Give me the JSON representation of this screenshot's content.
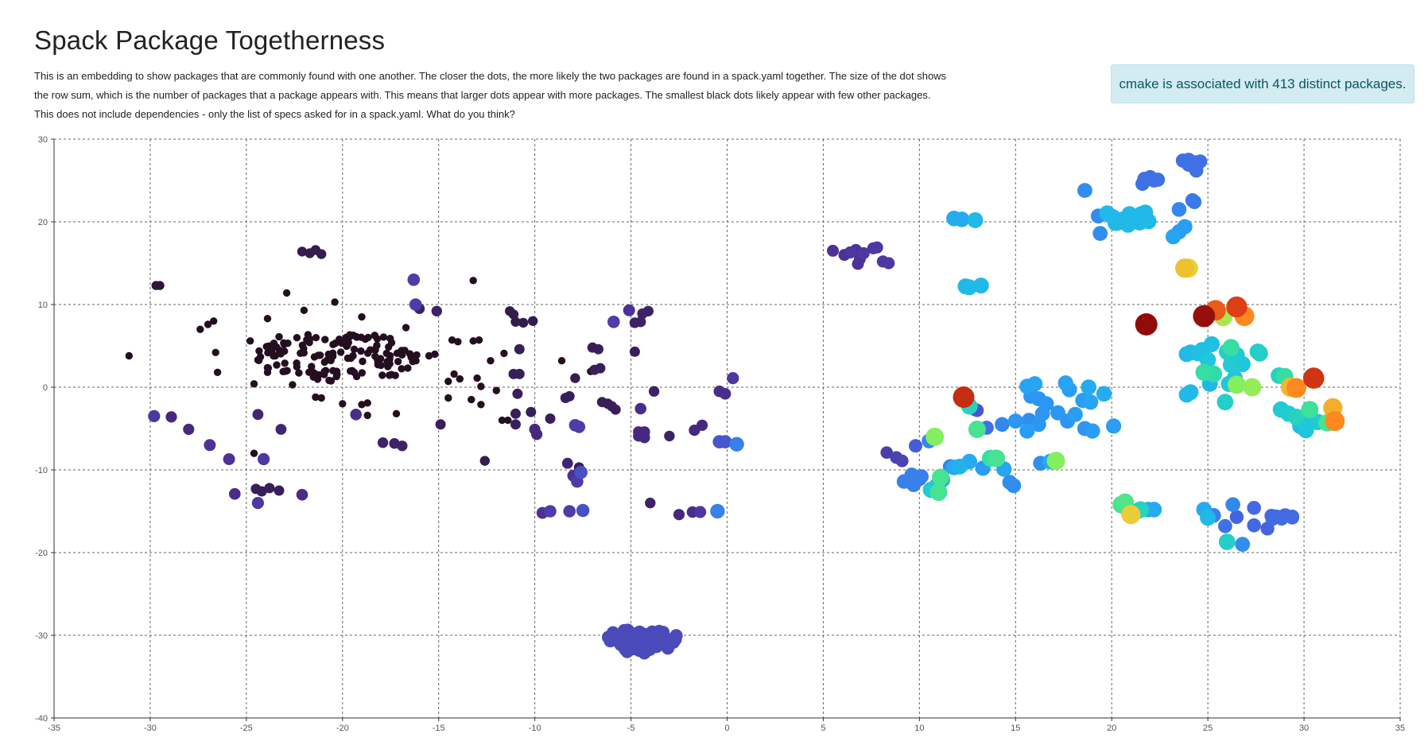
{
  "page": {
    "title": "Spack Package Togetherness",
    "description": "This is an embedding to show packages that are commonly found with one another. The closer the dots, the more likely the two packages are found in a spack.yaml together. The size of the dot shows the row sum, which is the number of packages that a package appears with. This means that larger dots appear with more packages. The smallest black dots likely appear with few other packages. This does not include dependencies - only the list of specs asked for in a spack.yaml. What do you think?",
    "info_message": "cmake is associated with 413 distinct packages."
  },
  "colors": {
    "grid": "#666666",
    "axis": "#333333",
    "info_bg": "#d2ecf1",
    "info_text": "#0c5460"
  },
  "chart_data": {
    "type": "scatter",
    "title": "",
    "xlabel": "",
    "ylabel": "",
    "xlim": [
      -35,
      35
    ],
    "ylim": [
      -40,
      30
    ],
    "grid": true,
    "x_ticks": [
      -35,
      -30,
      -25,
      -20,
      -15,
      -10,
      -5,
      0,
      5,
      10,
      15,
      20,
      25,
      30,
      35
    ],
    "y_ticks": [
      30,
      20,
      10,
      0,
      -10,
      -20,
      -30,
      -40
    ],
    "value_range": [
      0,
      413
    ],
    "color_scale": "jet-like (black/purple = few associations, cyan/green = medium, yellow/orange/red = many)",
    "point_format": "[x, y, row_sum]",
    "clusters": [
      {
        "name": "dense-black-cluster",
        "kind": "ellipse",
        "center": [
          -20.2,
          3.6
        ],
        "radius": [
          4.3,
          3.0
        ],
        "count": 140,
        "value": 2
      },
      {
        "name": "bottom-blue-cluster",
        "kind": "ellipse",
        "center": [
          -4.4,
          -30.6
        ],
        "radius": [
          1.9,
          1.6
        ],
        "count": 55,
        "value": 70
      },
      {
        "name": "top-cyan-cluster",
        "kind": "ellipse",
        "center": [
          20.8,
          20.5
        ],
        "radius": [
          1.4,
          0.9
        ],
        "count": 22,
        "value": 150
      },
      {
        "name": "right-lower-blue-cluster",
        "kind": "ellipse",
        "center": [
          28.6,
          -15.8
        ],
        "radius": [
          0.9,
          0.4
        ],
        "count": 10,
        "value": 95
      }
    ],
    "points": [
      [
        -31.1,
        3.8,
        2
      ],
      [
        -29.7,
        12.3,
        12
      ],
      [
        -29.5,
        12.3,
        12
      ],
      [
        -27.4,
        7.0,
        2
      ],
      [
        -27.0,
        7.6,
        2
      ],
      [
        -26.7,
        8.0,
        2
      ],
      [
        -26.6,
        4.2,
        2
      ],
      [
        -26.5,
        1.8,
        2
      ],
      [
        -24.8,
        5.6,
        2
      ],
      [
        -24.4,
        3.3,
        2
      ],
      [
        -24.6,
        0.4,
        2
      ],
      [
        -23.9,
        8.3,
        2
      ],
      [
        -23.9,
        1.8,
        2
      ],
      [
        -23.3,
        6.1,
        2
      ],
      [
        -23.0,
        2.9,
        2
      ],
      [
        -22.9,
        11.4,
        2
      ],
      [
        -22.6,
        0.3,
        2
      ],
      [
        -22.0,
        9.3,
        2
      ],
      [
        -21.4,
        -1.2,
        2
      ],
      [
        -21.1,
        -1.3,
        2
      ],
      [
        -20.4,
        10.3,
        2
      ],
      [
        -19.5,
        2.0,
        2
      ],
      [
        -19.0,
        8.5,
        2
      ],
      [
        -19.0,
        -2.1,
        2
      ],
      [
        -18.7,
        -1.9,
        2
      ],
      [
        -18.7,
        -3.4,
        2
      ],
      [
        -20.0,
        -2.0,
        2
      ],
      [
        -17.2,
        -3.2,
        2
      ],
      [
        -16.7,
        7.2,
        2
      ],
      [
        -22.1,
        16.4,
        20
      ],
      [
        -21.7,
        16.2,
        20
      ],
      [
        -21.4,
        16.6,
        20
      ],
      [
        -21.1,
        16.1,
        20
      ],
      [
        -16.2,
        10.0,
        60
      ],
      [
        -16.0,
        9.5,
        30
      ],
      [
        -15.1,
        9.2,
        30
      ],
      [
        -16.3,
        13.0,
        60
      ],
      [
        -15.5,
        3.8,
        2
      ],
      [
        -15.2,
        4.0,
        2
      ],
      [
        -14.9,
        -4.5,
        25
      ],
      [
        -14.3,
        5.7,
        2
      ],
      [
        -14.0,
        5.5,
        2
      ],
      [
        -14.2,
        1.6,
        2
      ],
      [
        -14.5,
        0.7,
        2
      ],
      [
        -13.9,
        1.0,
        2
      ],
      [
        -14.5,
        -1.3,
        2
      ],
      [
        -13.2,
        12.9,
        2
      ],
      [
        -13.2,
        5.6,
        2
      ],
      [
        -12.9,
        5.7,
        2
      ],
      [
        -13.0,
        1.1,
        2
      ],
      [
        -12.8,
        0.1,
        2
      ],
      [
        -13.3,
        -1.5,
        2
      ],
      [
        -12.8,
        -2.1,
        2
      ],
      [
        -12.6,
        -8.9,
        20
      ],
      [
        -12.3,
        3.2,
        2
      ],
      [
        -12.0,
        -0.4,
        2
      ],
      [
        -11.7,
        -4.0,
        2
      ],
      [
        -11.4,
        -4.0,
        2
      ],
      [
        -11.6,
        4.1,
        2
      ],
      [
        -11.3,
        9.2,
        20
      ],
      [
        -11.1,
        8.8,
        20
      ],
      [
        -11.0,
        7.9,
        20
      ],
      [
        -10.6,
        7.8,
        20
      ],
      [
        -10.8,
        4.6,
        25
      ],
      [
        -11.1,
        1.6,
        25
      ],
      [
        -10.8,
        1.6,
        25
      ],
      [
        -10.9,
        -0.8,
        25
      ],
      [
        -11.0,
        -3.2,
        25
      ],
      [
        -11.0,
        -4.5,
        25
      ],
      [
        -10.1,
        8.0,
        20
      ],
      [
        -10.2,
        -3.0,
        25
      ],
      [
        -10.0,
        -5.1,
        40
      ],
      [
        -9.9,
        -5.7,
        40
      ],
      [
        -9.2,
        -3.8,
        25
      ],
      [
        -8.6,
        3.2,
        2
      ],
      [
        -8.4,
        -1.3,
        25
      ],
      [
        -8.2,
        -1.1,
        25
      ],
      [
        -7.9,
        1.1,
        20
      ],
      [
        -8.3,
        -9.2,
        35
      ],
      [
        -8.0,
        -10.7,
        50
      ],
      [
        -7.8,
        -11.4,
        60
      ],
      [
        -7.6,
        -10.3,
        75
      ],
      [
        -7.1,
        1.9,
        2
      ],
      [
        -7.0,
        4.8,
        25
      ],
      [
        -6.7,
        4.6,
        25
      ],
      [
        -6.9,
        2.1,
        25
      ],
      [
        -6.6,
        2.3,
        25
      ],
      [
        -6.5,
        -1.8,
        25
      ],
      [
        -6.2,
        -2.0,
        25
      ],
      [
        -6.0,
        -2.3,
        25
      ],
      [
        -5.8,
        -2.7,
        25
      ],
      [
        -7.7,
        -9.7,
        25
      ],
      [
        -7.9,
        -4.6,
        60
      ],
      [
        -7.7,
        -4.8,
        60
      ],
      [
        -9.6,
        -15.2,
        50
      ],
      [
        -9.2,
        -15.0,
        60
      ],
      [
        -8.2,
        -15.0,
        60
      ],
      [
        -7.5,
        -14.9,
        75
      ],
      [
        -5.9,
        7.9,
        60
      ],
      [
        -5.1,
        9.3,
        50
      ],
      [
        -4.8,
        7.8,
        30
      ],
      [
        -4.5,
        7.9,
        30
      ],
      [
        -4.4,
        8.9,
        30
      ],
      [
        -4.1,
        9.2,
        30
      ],
      [
        -4.8,
        4.3,
        25
      ],
      [
        -4.6,
        -5.4,
        40
      ],
      [
        -4.6,
        -5.9,
        40
      ],
      [
        -4.3,
        -5.4,
        40
      ],
      [
        -4.3,
        -6.1,
        40
      ],
      [
        -4.5,
        -2.6,
        45
      ],
      [
        -4.0,
        -14.0,
        30
      ],
      [
        -3.8,
        -0.5,
        30
      ],
      [
        -3.0,
        -5.9,
        30
      ],
      [
        -2.5,
        -15.4,
        40
      ],
      [
        -1.8,
        -15.1,
        45
      ],
      [
        -1.4,
        -15.1,
        55
      ],
      [
        -1.7,
        -5.2,
        40
      ],
      [
        -1.3,
        -4.6,
        40
      ],
      [
        -0.4,
        -0.5,
        45
      ],
      [
        -0.1,
        -0.8,
        45
      ],
      [
        0.3,
        1.1,
        55
      ],
      [
        -0.1,
        -6.6,
        80
      ],
      [
        -0.5,
        -15.0,
        110
      ],
      [
        -0.4,
        -6.6,
        80
      ],
      [
        0.5,
        -6.9,
        110
      ],
      [
        -29.8,
        -3.5,
        55
      ],
      [
        -28.9,
        -3.6,
        40
      ],
      [
        -28.0,
        -5.1,
        40
      ],
      [
        -26.9,
        -7.0,
        50
      ],
      [
        -25.9,
        -8.7,
        50
      ],
      [
        -24.6,
        -8.0,
        2
      ],
      [
        -24.4,
        -3.3,
        35
      ],
      [
        -24.1,
        -8.7,
        55
      ],
      [
        -24.4,
        -14.0,
        55
      ],
      [
        -25.6,
        -12.9,
        45
      ],
      [
        -24.2,
        -12.6,
        25
      ],
      [
        -23.8,
        -12.2,
        25
      ],
      [
        -23.3,
        -12.5,
        25
      ],
      [
        -24.5,
        -12.3,
        25
      ],
      [
        -22.1,
        -13.0,
        45
      ],
      [
        -23.2,
        -5.1,
        35
      ],
      [
        -19.3,
        -3.3,
        45
      ],
      [
        -17.9,
        -6.7,
        30
      ],
      [
        -17.3,
        -6.8,
        30
      ],
      [
        -16.9,
        -7.1,
        30
      ],
      [
        5.5,
        16.5,
        50
      ],
      [
        6.1,
        16.0,
        50
      ],
      [
        6.4,
        16.3,
        55
      ],
      [
        6.7,
        16.6,
        50
      ],
      [
        6.9,
        15.5,
        50
      ],
      [
        7.1,
        16.2,
        55
      ],
      [
        6.8,
        14.9,
        50
      ],
      [
        7.6,
        16.8,
        55
      ],
      [
        7.8,
        16.9,
        55
      ],
      [
        8.1,
        15.2,
        55
      ],
      [
        8.4,
        15.0,
        55
      ],
      [
        8.3,
        -7.9,
        60
      ],
      [
        8.8,
        -8.5,
        65
      ],
      [
        9.1,
        -8.9,
        65
      ],
      [
        9.2,
        -11.4,
        110
      ],
      [
        9.6,
        -10.6,
        110
      ],
      [
        9.7,
        -11.8,
        110
      ],
      [
        10.0,
        -11.1,
        100
      ],
      [
        10.1,
        -10.8,
        110
      ],
      [
        9.8,
        -7.1,
        85
      ],
      [
        10.5,
        -6.5,
        115
      ],
      [
        10.9,
        -11.9,
        130
      ],
      [
        11.2,
        -11.2,
        135
      ],
      [
        10.6,
        -12.4,
        165
      ],
      [
        10.8,
        -6.0,
        230
      ],
      [
        11.1,
        -10.9,
        200
      ],
      [
        11.0,
        -12.7,
        200
      ],
      [
        11.8,
        -9.7,
        140
      ],
      [
        11.6,
        -9.6,
        115
      ],
      [
        12.1,
        -9.6,
        145
      ],
      [
        12.6,
        -9.0,
        140
      ],
      [
        13.0,
        -5.1,
        200
      ],
      [
        13.5,
        -4.9,
        100
      ],
      [
        13.3,
        -9.8,
        130
      ],
      [
        13.7,
        -8.6,
        190
      ],
      [
        14.0,
        -8.6,
        200
      ],
      [
        14.3,
        -4.5,
        115
      ],
      [
        14.4,
        -9.9,
        135
      ],
      [
        14.7,
        -11.5,
        120
      ],
      [
        14.9,
        -11.9,
        120
      ],
      [
        15.0,
        -4.1,
        125
      ],
      [
        12.4,
        12.2,
        150
      ],
      [
        12.6,
        12.1,
        150
      ],
      [
        13.2,
        12.3,
        150
      ],
      [
        11.8,
        20.4,
        140
      ],
      [
        12.2,
        20.3,
        140
      ],
      [
        12.9,
        20.2,
        150
      ],
      [
        12.3,
        -1.2,
        370
      ],
      [
        12.6,
        -2.3,
        175
      ],
      [
        12.9,
        -2.7,
        80
      ],
      [
        13.0,
        -2.8,
        80
      ],
      [
        15.7,
        -4.0,
        120
      ],
      [
        15.6,
        -5.3,
        130
      ],
      [
        15.6,
        0.1,
        135
      ],
      [
        16.0,
        0.4,
        135
      ],
      [
        15.8,
        -1.1,
        125
      ],
      [
        16.2,
        -1.4,
        125
      ],
      [
        16.4,
        -3.2,
        125
      ],
      [
        16.6,
        -2.0,
        125
      ],
      [
        16.2,
        -4.5,
        125
      ],
      [
        16.3,
        -9.2,
        120
      ],
      [
        16.8,
        -9.0,
        140
      ],
      [
        17.1,
        -8.9,
        230
      ],
      [
        17.2,
        -3.1,
        125
      ],
      [
        17.7,
        -4.1,
        125
      ],
      [
        17.6,
        0.5,
        135
      ],
      [
        17.8,
        -0.3,
        130
      ],
      [
        18.1,
        -3.3,
        130
      ],
      [
        18.5,
        -1.6,
        130
      ],
      [
        18.9,
        -1.8,
        135
      ],
      [
        18.6,
        -5.0,
        125
      ],
      [
        19.0,
        -5.3,
        130
      ],
      [
        18.8,
        0.0,
        140
      ],
      [
        19.6,
        -0.8,
        140
      ],
      [
        20.1,
        -4.7,
        130
      ],
      [
        18.6,
        23.8,
        120
      ],
      [
        19.3,
        20.7,
        120
      ],
      [
        19.4,
        18.6,
        120
      ],
      [
        20.5,
        -14.2,
        200
      ],
      [
        20.7,
        -13.9,
        205
      ],
      [
        21.0,
        -15.4,
        265
      ],
      [
        20.9,
        -15.1,
        165
      ],
      [
        21.3,
        -15.0,
        170
      ],
      [
        21.5,
        -14.8,
        175
      ],
      [
        21.9,
        -14.8,
        140
      ],
      [
        22.2,
        -14.8,
        140
      ],
      [
        21.7,
        25.2,
        100
      ],
      [
        22.0,
        25.4,
        100
      ],
      [
        22.2,
        25.0,
        100
      ],
      [
        21.6,
        24.6,
        100
      ],
      [
        22.4,
        25.1,
        100
      ],
      [
        23.7,
        27.4,
        100
      ],
      [
        24.0,
        27.5,
        100
      ],
      [
        24.3,
        27.2,
        100
      ],
      [
        24.6,
        27.3,
        100
      ],
      [
        24.0,
        26.9,
        100
      ],
      [
        24.4,
        26.2,
        100
      ],
      [
        24.3,
        22.4,
        105
      ],
      [
        24.2,
        22.6,
        105
      ],
      [
        23.5,
        21.5,
        115
      ],
      [
        23.8,
        19.4,
        130
      ],
      [
        23.2,
        18.2,
        135
      ],
      [
        23.5,
        18.8,
        130
      ],
      [
        23.8,
        14.4,
        270
      ],
      [
        24.0,
        14.4,
        260
      ],
      [
        21.8,
        7.6,
        410
      ],
      [
        24.8,
        8.6,
        405
      ],
      [
        25.4,
        9.3,
        330
      ],
      [
        26.5,
        9.7,
        350
      ],
      [
        25.8,
        8.5,
        240
      ],
      [
        26.9,
        8.6,
        300
      ],
      [
        24.7,
        4.5,
        155
      ],
      [
        24.5,
        4.1,
        155
      ],
      [
        24.1,
        4.2,
        150
      ],
      [
        23.9,
        4.0,
        150
      ],
      [
        25.2,
        5.2,
        155
      ],
      [
        25.0,
        3.3,
        160
      ],
      [
        24.8,
        1.8,
        190
      ],
      [
        25.3,
        1.6,
        185
      ],
      [
        26.0,
        4.3,
        170
      ],
      [
        26.2,
        3.8,
        165
      ],
      [
        26.5,
        3.9,
        160
      ],
      [
        26.2,
        4.8,
        190
      ],
      [
        26.5,
        3.1,
        155
      ],
      [
        26.2,
        2.7,
        165
      ],
      [
        26.8,
        2.8,
        160
      ],
      [
        25.1,
        0.4,
        150
      ],
      [
        26.1,
        0.4,
        160
      ],
      [
        26.5,
        0.3,
        230
      ],
      [
        26.4,
        1.1,
        160
      ],
      [
        25.9,
        -1.8,
        170
      ],
      [
        24.1,
        -0.6,
        150
      ],
      [
        23.9,
        -0.9,
        150
      ],
      [
        27.3,
        0.0,
        235
      ],
      [
        27.6,
        4.3,
        165
      ],
      [
        27.7,
        4.1,
        170
      ],
      [
        28.7,
        1.4,
        175
      ],
      [
        29.0,
        1.3,
        190
      ],
      [
        28.8,
        -2.7,
        165
      ],
      [
        29.2,
        -3.2,
        165
      ],
      [
        29.6,
        -3.6,
        175
      ],
      [
        29.3,
        0.0,
        275
      ],
      [
        29.6,
        -0.1,
        300
      ],
      [
        29.8,
        -4.7,
        155
      ],
      [
        30.1,
        -4.5,
        160
      ],
      [
        30.1,
        -5.2,
        160
      ],
      [
        30.3,
        -2.7,
        195
      ],
      [
        30.7,
        -4.2,
        165
      ],
      [
        30.5,
        1.1,
        360
      ],
      [
        31.5,
        -2.5,
        280
      ],
      [
        31.6,
        -4.1,
        300
      ],
      [
        31.2,
        -4.3,
        200
      ],
      [
        24.8,
        -14.8,
        140
      ],
      [
        25.0,
        -15.8,
        150
      ],
      [
        25.3,
        -15.5,
        110
      ],
      [
        26.3,
        -14.2,
        115
      ],
      [
        26.5,
        -15.7,
        90
      ],
      [
        25.9,
        -16.8,
        100
      ],
      [
        27.4,
        -14.6,
        95
      ],
      [
        27.4,
        -16.7,
        95
      ],
      [
        28.1,
        -17.1,
        90
      ],
      [
        26.0,
        -18.7,
        170
      ],
      [
        26.8,
        -19.0,
        120
      ]
    ]
  }
}
